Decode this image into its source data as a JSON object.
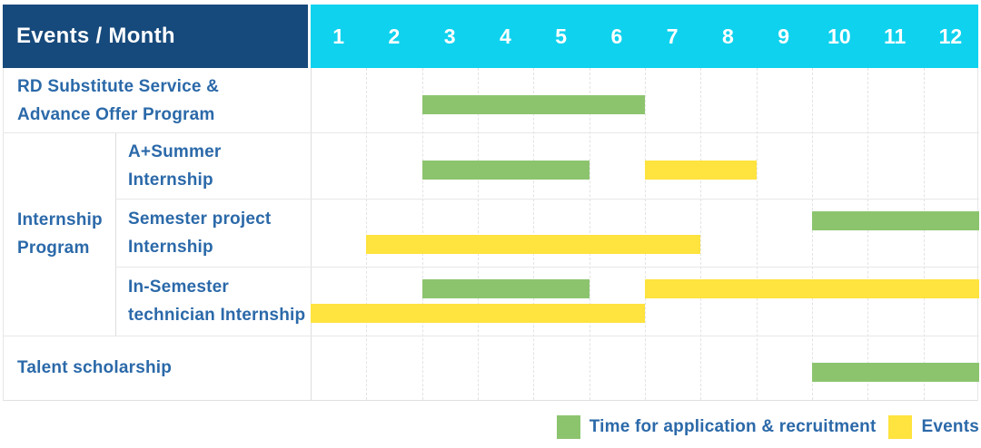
{
  "header": {
    "title": "Events / Month",
    "months": [
      "1",
      "2",
      "3",
      "4",
      "5",
      "6",
      "7",
      "8",
      "9",
      "10",
      "11",
      "12"
    ]
  },
  "body": {
    "group": {
      "name": "Internship Program",
      "lines": [
        "Internship",
        "Program"
      ]
    },
    "rows": [
      {
        "name": "RD Substitute Service & Advance Offer Program",
        "lines": [
          "RD Substitute Service &",
          "Advance Offer Program"
        ],
        "bars": [
          {
            "kind": "application",
            "start_month": 3,
            "end_month": 6,
            "lane": "single"
          }
        ]
      },
      {
        "name": "A+Summer Internship",
        "lines": [
          "A+Summer",
          "Internship"
        ],
        "bars": [
          {
            "kind": "application",
            "start_month": 3,
            "end_month": 5,
            "lane": "single"
          },
          {
            "kind": "event",
            "start_month": 7,
            "end_month": 8,
            "lane": "single"
          }
        ]
      },
      {
        "name": "Semester project Internship",
        "lines": [
          "Semester project",
          "Internship"
        ],
        "bars": [
          {
            "kind": "application",
            "start_month": 10,
            "end_month": 12,
            "lane": "top"
          },
          {
            "kind": "event",
            "start_month": 2,
            "end_month": 7,
            "lane": "bottom"
          }
        ]
      },
      {
        "name": "In-Semester technician Internship",
        "lines": [
          "In-Semester",
          "technician Internship"
        ],
        "bars": [
          {
            "kind": "application",
            "start_month": 3,
            "end_month": 5,
            "lane": "top"
          },
          {
            "kind": "event",
            "start_month": 7,
            "end_month": 12,
            "lane": "top"
          },
          {
            "kind": "event",
            "start_month": 1,
            "end_month": 6,
            "lane": "bottom"
          }
        ]
      },
      {
        "name": "Talent scholarship",
        "lines": [
          "Talent scholarship"
        ],
        "bars": [
          {
            "kind": "application",
            "start_month": 10,
            "end_month": 12,
            "lane": "single"
          }
        ]
      }
    ]
  },
  "legend": {
    "items": [
      {
        "kind": "application",
        "label": "Time for application & recruitment",
        "color": "#8CC46E"
      },
      {
        "kind": "event",
        "label": "Events",
        "color": "#FFE33E"
      }
    ]
  },
  "colors": {
    "header_navy": "#174A7C",
    "header_cyan": "#0FD2EE",
    "label_text": "#2B69A9",
    "application_green": "#8CC46E",
    "event_yellow": "#FFE33E",
    "grid_line": "#E3E3E3",
    "row_line": "#E7E7E7"
  },
  "chart_data": {
    "type": "gantt",
    "title": "Events / Month",
    "xlabel": "Month",
    "x_ticks": [
      1,
      2,
      3,
      4,
      5,
      6,
      7,
      8,
      9,
      10,
      11,
      12
    ],
    "x_range": [
      1,
      12
    ],
    "grid": true,
    "legend_position": "bottom-right",
    "legend": [
      "Time for application & recruitment",
      "Events"
    ],
    "rows": [
      {
        "category": "RD Substitute Service & Advance Offer Program",
        "group": null,
        "spans": [
          {
            "series": "Time for application & recruitment",
            "months": [
              3,
              6
            ]
          }
        ]
      },
      {
        "category": "A+Summer Internship",
        "group": "Internship Program",
        "spans": [
          {
            "series": "Time for application & recruitment",
            "months": [
              3,
              5
            ]
          },
          {
            "series": "Events",
            "months": [
              7,
              8
            ]
          }
        ]
      },
      {
        "category": "Semester project Internship",
        "group": "Internship Program",
        "spans": [
          {
            "series": "Time for application & recruitment",
            "months": [
              10,
              12
            ]
          },
          {
            "series": "Events",
            "months": [
              2,
              7
            ]
          }
        ]
      },
      {
        "category": "In-Semester technician Internship",
        "group": "Internship Program",
        "spans": [
          {
            "series": "Time for application & recruitment",
            "months": [
              3,
              5
            ]
          },
          {
            "series": "Events",
            "months": [
              7,
              12
            ]
          },
          {
            "series": "Events",
            "months": [
              1,
              6
            ]
          }
        ]
      },
      {
        "category": "Talent scholarship",
        "group": null,
        "spans": [
          {
            "series": "Time for application & recruitment",
            "months": [
              10,
              12
            ]
          }
        ]
      }
    ]
  }
}
